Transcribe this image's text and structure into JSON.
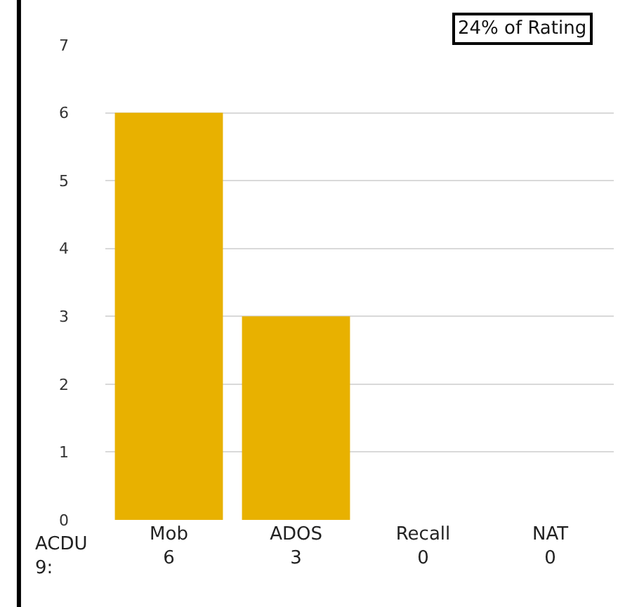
{
  "chart_data": {
    "type": "bar",
    "title": "24% of Rating",
    "categories": [
      "Mob",
      "ADOS",
      "Recall",
      "NAT"
    ],
    "series": [
      {
        "color": "#e8b100",
        "values": [
          6,
          3,
          0,
          0
        ]
      }
    ],
    "ylim": [
      0,
      7
    ],
    "yticks": [
      0,
      1,
      2,
      3,
      4,
      5,
      6,
      7
    ],
    "grid": "y",
    "data_labels": true,
    "legend": false,
    "annotations": [
      "ACDU 9:"
    ]
  }
}
